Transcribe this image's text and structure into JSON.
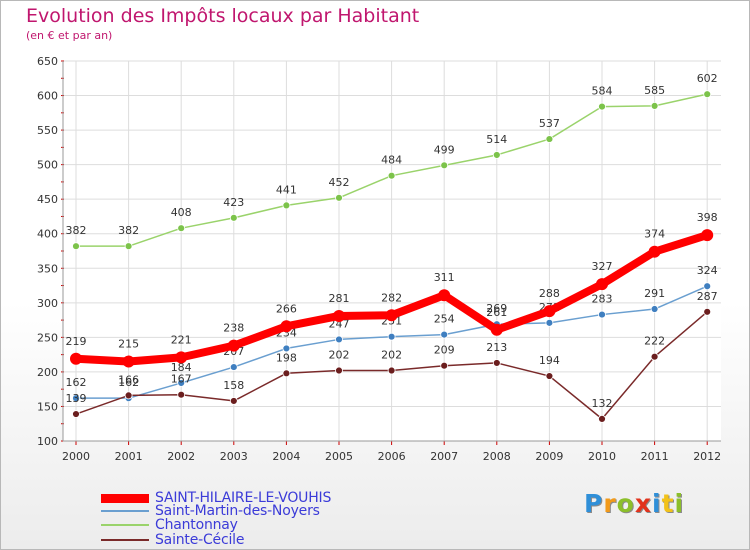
{
  "chart_data": {
    "type": "line",
    "title": "Evolution des Impôts locaux par Habitant",
    "subtitle": "(en € et par an)",
    "x": [
      "2000",
      "2001",
      "2002",
      "2003",
      "2004",
      "2005",
      "2006",
      "2007",
      "2008",
      "2009",
      "2010",
      "2011",
      "2012"
    ],
    "ylim": [
      100,
      650
    ],
    "yticks": [
      100,
      150,
      200,
      250,
      300,
      350,
      400,
      450,
      500,
      550,
      600,
      650
    ],
    "grid": true,
    "legend_position": "bottom-left",
    "series": [
      {
        "name": "Chantonnay",
        "color": "#9ad36b",
        "marker": "#7cc34a",
        "values": [
          382,
          382,
          408,
          423,
          441,
          452,
          484,
          499,
          514,
          537,
          584,
          585,
          602
        ]
      },
      {
        "name": "Saint-Martin-des-Noyers",
        "color": "#6a9fd0",
        "marker": "#3f7fc0",
        "values": [
          162,
          162,
          184,
          207,
          234,
          247,
          251,
          254,
          269,
          271,
          283,
          291,
          324
        ]
      },
      {
        "name": "Sainte-Cécile",
        "color": "#7a2a2a",
        "marker": "#6b1e1e",
        "values": [
          139,
          166,
          167,
          158,
          198,
          202,
          202,
          209,
          213,
          194,
          132,
          222,
          287
        ]
      },
      {
        "name": "SAINT-HILAIRE-LE-VOUHIS",
        "color": "#ff0000",
        "marker": "#ff0000",
        "values": [
          219,
          215,
          221,
          238,
          266,
          281,
          282,
          311,
          261,
          288,
          327,
          374,
          398
        ]
      }
    ],
    "legend_order": [
      "SAINT-HILAIRE-LE-VOUHIS",
      "Saint-Martin-des-Noyers",
      "Chantonnay",
      "Sainte-Cécile"
    ]
  },
  "brand": {
    "letters": [
      "P",
      "r",
      "o",
      "x",
      "i",
      "t",
      "i"
    ]
  }
}
